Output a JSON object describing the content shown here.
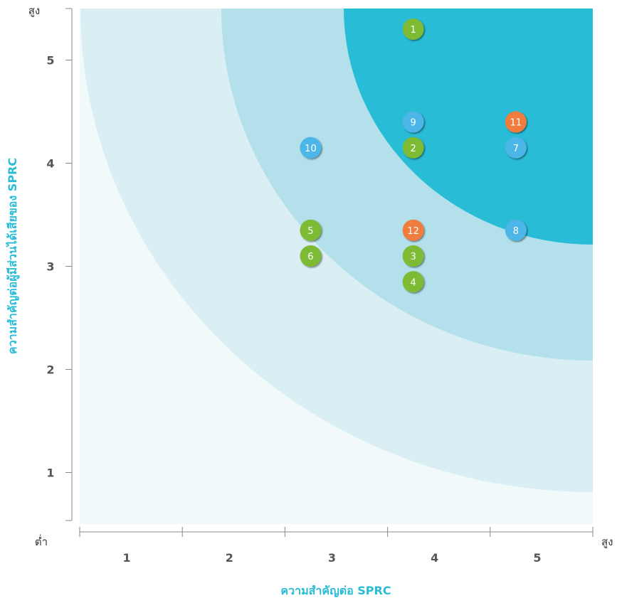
{
  "chart_data": {
    "type": "scatter",
    "xlabel": "ความสำคัญต่อ SPRC",
    "ylabel": "ความสำคัญต่อผู้มีส่วนได้เสียของ SPRC",
    "x_low_label": "ต่ำ",
    "x_high_label": "สูง",
    "y_high_label": "สูง",
    "xlim": [
      0.5,
      5.5
    ],
    "ylim": [
      0.5,
      5.5
    ],
    "x_ticks": [
      1,
      2,
      3,
      4,
      5
    ],
    "y_ticks": [
      1,
      2,
      3,
      4,
      5
    ],
    "points": [
      {
        "label": "1",
        "x": 3.75,
        "y": 5.3,
        "color": "#7dbb35"
      },
      {
        "label": "2",
        "x": 3.75,
        "y": 4.15,
        "color": "#7dbb35"
      },
      {
        "label": "3",
        "x": 3.75,
        "y": 3.1,
        "color": "#7dbb35"
      },
      {
        "label": "4",
        "x": 3.75,
        "y": 2.85,
        "color": "#7dbb35"
      },
      {
        "label": "5",
        "x": 2.75,
        "y": 3.35,
        "color": "#7dbb35"
      },
      {
        "label": "6",
        "x": 2.75,
        "y": 3.1,
        "color": "#7dbb35"
      },
      {
        "label": "7",
        "x": 4.75,
        "y": 4.15,
        "color": "#4db6e8"
      },
      {
        "label": "8",
        "x": 4.75,
        "y": 3.35,
        "color": "#4db6e8"
      },
      {
        "label": "9",
        "x": 3.75,
        "y": 4.4,
        "color": "#4db6e8"
      },
      {
        "label": "10",
        "x": 2.75,
        "y": 4.15,
        "color": "#4db6e8"
      },
      {
        "label": "11",
        "x": 4.75,
        "y": 4.4,
        "color": "#f07d3c"
      },
      {
        "label": "12",
        "x": 3.75,
        "y": 3.35,
        "color": "#f07d3c"
      }
    ],
    "zone_colors": [
      "#f1f9fb",
      "#d9eff4",
      "#b3e0eb",
      "#29bcd6"
    ],
    "axis_title_color": "#29bcd6"
  }
}
